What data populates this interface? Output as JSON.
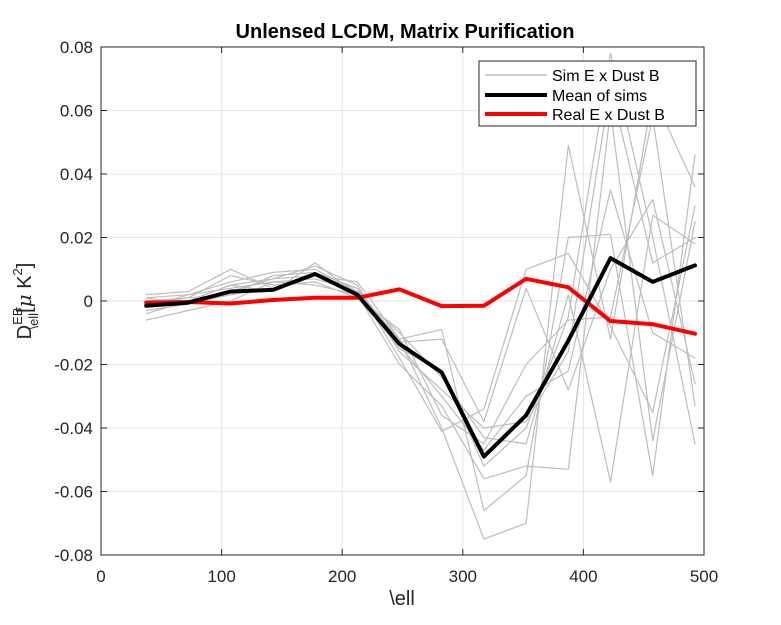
{
  "chart_data": {
    "type": "line",
    "title": "Unlensed LCDM, Matrix Purification",
    "xlabel": "\\ell",
    "ylabel": {
      "base": "D",
      "sup": "EB",
      "sub": "\\ell",
      "unit_open": "[",
      "unit_mu": "μ",
      "unit_k": " K",
      "unit_sup": "2",
      "unit_close": "]"
    },
    "xlim": [
      0,
      500
    ],
    "ylim": [
      -0.08,
      0.08
    ],
    "xticks": [
      0,
      100,
      200,
      300,
      400,
      500
    ],
    "yticks": [
      -0.08,
      -0.06,
      -0.04,
      -0.02,
      0,
      0.02,
      0.04,
      0.06,
      0.08
    ],
    "ytick_labels": [
      "-0.08",
      "-0.06",
      "-0.04",
      "-0.02",
      "0",
      "0.02",
      "0.04",
      "0.06",
      "0.08"
    ],
    "grid": true,
    "legend_position": "top-right",
    "x": [
      37.5,
      72.5,
      107.5,
      142.5,
      177.5,
      212.5,
      247.5,
      282.5,
      317.5,
      352.5,
      387.5,
      422.5,
      457.5,
      492.5
    ],
    "series": [
      {
        "name": "Sim E x Dust B",
        "color": "#bdbdbd",
        "role": "sim",
        "values": [
          -0.002,
          0.0,
          0.005,
          0.003,
          0.012,
          0.002,
          -0.015,
          -0.022,
          -0.052,
          -0.04,
          -0.005,
          0.078,
          0.02,
          -0.045
        ]
      },
      {
        "name": "",
        "color": "#bdbdbd",
        "role": "sim",
        "values": [
          0.002,
          0.003,
          0.01,
          0.004,
          0.008,
          0.006,
          -0.012,
          -0.04,
          -0.075,
          -0.07,
          0.049,
          -0.012,
          0.065,
          0.036
        ]
      },
      {
        "name": "",
        "color": "#bdbdbd",
        "role": "sim",
        "values": [
          -0.001,
          0.001,
          0.002,
          0.008,
          0.009,
          0.004,
          -0.018,
          -0.041,
          -0.034,
          0.01,
          0.015,
          -0.008,
          -0.035,
          0.03
        ]
      },
      {
        "name": "",
        "color": "#bdbdbd",
        "role": "sim",
        "values": [
          0.001,
          0.002,
          0.006,
          0.009,
          0.01,
          0.003,
          -0.012,
          -0.009,
          -0.066,
          -0.055,
          0.02,
          0.021,
          -0.055,
          0.046
        ]
      },
      {
        "name": "",
        "color": "#bdbdbd",
        "role": "sim",
        "values": [
          -0.006,
          -0.003,
          0.0,
          0.006,
          0.005,
          0.002,
          -0.02,
          -0.033,
          -0.056,
          -0.052,
          -0.053,
          0.06,
          -0.044,
          0.025
        ]
      },
      {
        "name": "",
        "color": "#bdbdbd",
        "role": "sim",
        "values": [
          -0.003,
          -0.001,
          0.003,
          0.007,
          0.011,
          0.005,
          -0.016,
          -0.028,
          -0.04,
          -0.038,
          -0.016,
          0.068,
          0.012,
          0.02
        ]
      },
      {
        "name": "",
        "color": "#bdbdbd",
        "role": "sim",
        "values": [
          0.0,
          0.001,
          0.008,
          0.005,
          0.006,
          0.001,
          -0.009,
          -0.036,
          -0.045,
          -0.02,
          -0.006,
          -0.005,
          0.058,
          -0.033
        ]
      },
      {
        "name": "",
        "color": "#bdbdbd",
        "role": "sim",
        "values": [
          -0.002,
          0.002,
          0.004,
          0.006,
          0.007,
          0.003,
          -0.014,
          -0.03,
          -0.047,
          -0.03,
          -0.022,
          0.035,
          -0.01,
          -0.018
        ]
      },
      {
        "name": "",
        "color": "#bdbdbd",
        "role": "sim",
        "values": [
          0.001,
          -0.001,
          0.002,
          0.004,
          0.009,
          0.002,
          -0.01,
          -0.024,
          -0.043,
          -0.045,
          0.002,
          -0.057,
          0.027,
          0.018
        ]
      },
      {
        "name": "",
        "color": "#bdbdbd",
        "role": "sim",
        "values": [
          -0.004,
          0.0,
          0.005,
          0.007,
          0.008,
          0.004,
          -0.013,
          -0.012,
          -0.038,
          0.004,
          -0.028,
          0.01,
          0.032,
          -0.026
        ]
      },
      {
        "name": "Mean of sims",
        "color": "#000000",
        "role": "mean",
        "values": [
          -0.0015,
          -0.0005,
          0.003,
          0.0035,
          0.0085,
          0.002,
          -0.0135,
          -0.0225,
          -0.049,
          -0.036,
          -0.0125,
          0.0135,
          0.006,
          0.0112
        ]
      },
      {
        "name": "Real E x Dust B",
        "color": "#ff0000",
        "role": "real",
        "values": [
          -0.0005,
          -0.0003,
          -0.0008,
          0.0003,
          0.001,
          0.001,
          0.0037,
          -0.0016,
          -0.0015,
          0.007,
          0.0043,
          -0.0063,
          -0.0073,
          -0.0103
        ]
      }
    ]
  }
}
